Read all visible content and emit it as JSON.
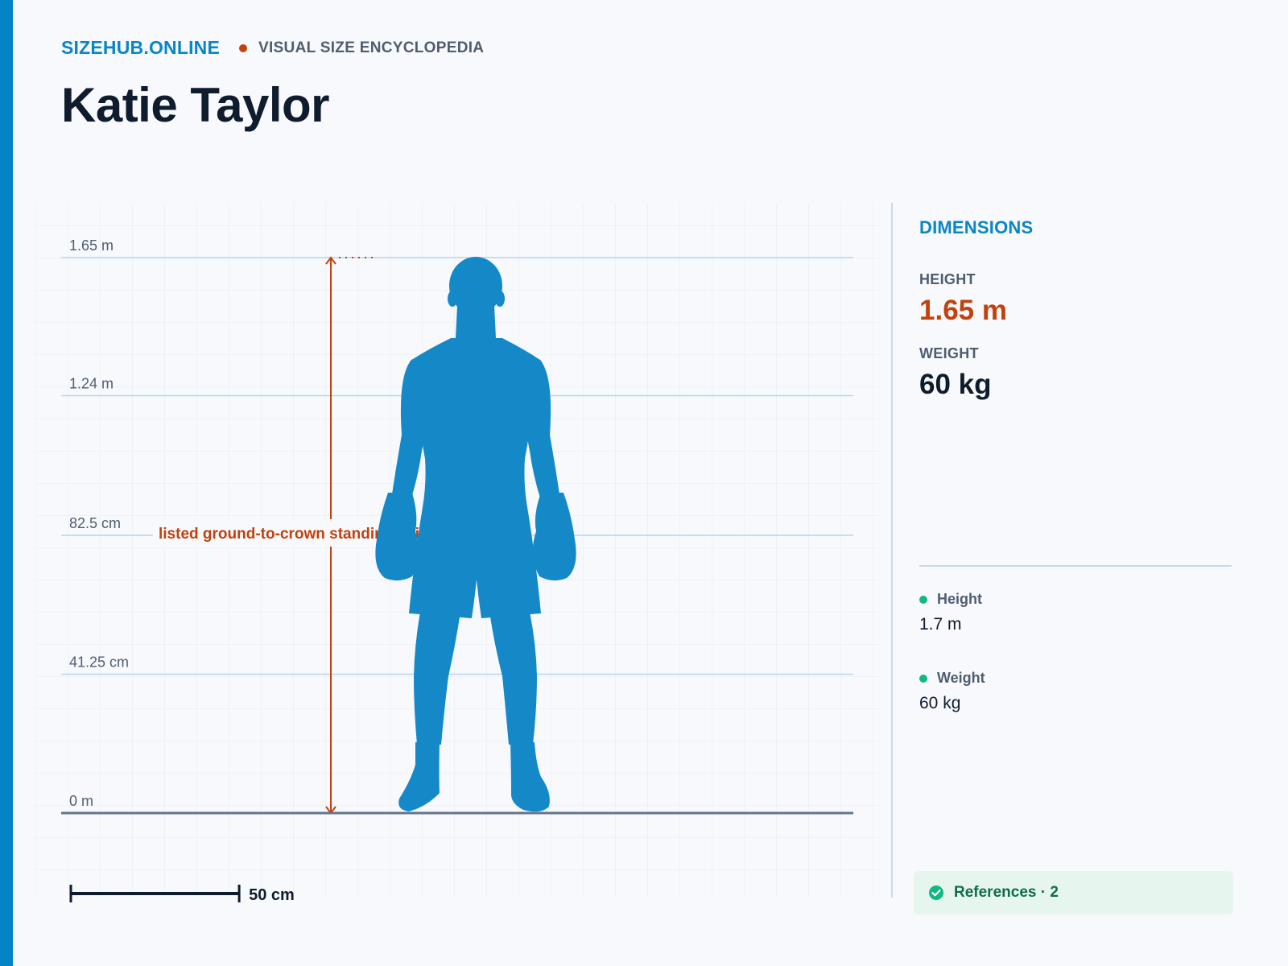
{
  "header": {
    "brand": "SIZEHUB.ONLINE",
    "tagline": "VISUAL SIZE ENCYCLOPEDIA",
    "title": "Katie Taylor"
  },
  "chart_data": {
    "type": "height-comparison",
    "ylim": [
      0,
      1.65
    ],
    "ticks": [
      {
        "value": 0,
        "label": "0 m"
      },
      {
        "value": 0.4125,
        "label": "41.25 cm"
      },
      {
        "value": 0.825,
        "label": "82.5 cm"
      },
      {
        "value": 1.24,
        "label": "1.24 m"
      },
      {
        "value": 1.65,
        "label": "1.65 m"
      }
    ],
    "subject": {
      "name": "Katie Taylor",
      "height_m": 1.65,
      "color": "#1589c8"
    },
    "annotation": "listed ground-to-crown standing height",
    "scale_bar": {
      "value_m": 0.5,
      "label": "50 cm"
    },
    "colors": {
      "measure": "#c2410c",
      "grid_major": "#b7d6ea",
      "baseline": "#64748b"
    }
  },
  "panel": {
    "title": "DIMENSIONS",
    "height_label": "HEIGHT",
    "height_value": "1.65 m",
    "weight_label": "WEIGHT",
    "weight_value": "60 kg",
    "refs": [
      {
        "label": "Height",
        "value": "1.7 m"
      },
      {
        "label": "Weight",
        "value": "60 kg"
      }
    ],
    "references_label": "References · 2"
  }
}
